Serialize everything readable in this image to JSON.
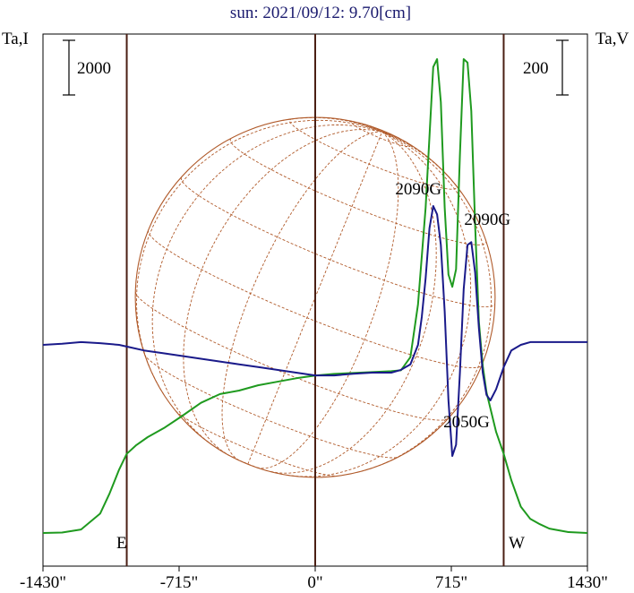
{
  "chart_data": {
    "type": "line",
    "title": "sun: 2021/09/12: 9.70[cm]",
    "left_axis_label": "Ta,I",
    "right_axis_label": "Ta,V",
    "left_scale_bar_label": "2000",
    "right_scale_bar_label": "200",
    "x_tick_labels": [
      "-1430\"",
      "-715\"",
      "0\"",
      "715\"",
      "1430\""
    ],
    "x_ticks": [
      -1430,
      -715,
      0,
      715,
      1430
    ],
    "xlim": [
      -1430,
      1430
    ],
    "limb_markers": {
      "east": -990,
      "center": 0,
      "west": 990,
      "east_label": "E",
      "west_label": "W"
    },
    "solar_disk": {
      "center_x": 0,
      "radius_arcsec": 945,
      "grid_color": "#b05a2a"
    },
    "annotations": [
      {
        "text": "2090G",
        "x": 590,
        "series": "V"
      },
      {
        "text": "2090G",
        "x": 820,
        "series": "V"
      },
      {
        "text": "2050G",
        "x": 720,
        "series": "V"
      }
    ],
    "series": [
      {
        "color": "#1f9a1f",
        "x": [
          -1430,
          -1330,
          -1230,
          -1130,
          -1080,
          -1030,
          -990,
          -940,
          -880,
          -790,
          -700,
          -600,
          -500,
          -400,
          -300,
          -200,
          -100,
          0,
          100,
          200,
          300,
          400,
          450,
          500,
          540,
          580,
          620,
          640,
          660,
          680,
          700,
          720,
          740,
          760,
          780,
          800,
          820,
          840,
          860,
          880,
          900,
          950,
          990,
          1030,
          1080,
          1130,
          1180,
          1230,
          1330,
          1430
        ],
        "values": [
          0,
          5,
          40,
          220,
          450,
          720,
          900,
          1000,
          1090,
          1200,
          1330,
          1480,
          1580,
          1620,
          1680,
          1720,
          1760,
          1790,
          1810,
          1820,
          1830,
          1840,
          1850,
          2000,
          2600,
          3700,
          5300,
          5390,
          4900,
          3700,
          2940,
          2800,
          3000,
          4300,
          5390,
          5350,
          4800,
          3500,
          2400,
          1900,
          1600,
          1150,
          900,
          600,
          300,
          160,
          100,
          50,
          10,
          0
        ]
      },
      {
        "color": "#1a1a8a",
        "x": [
          -1430,
          -1330,
          -1230,
          -1130,
          -1030,
          -990,
          -900,
          -800,
          -700,
          -600,
          -500,
          -400,
          -300,
          -200,
          -100,
          0,
          100,
          200,
          300,
          400,
          450,
          500,
          540,
          560,
          580,
          600,
          620,
          640,
          660,
          680,
          700,
          720,
          740,
          760,
          780,
          800,
          820,
          840,
          860,
          880,
          900,
          920,
          950,
          990,
          1030,
          1080,
          1130,
          1230,
          1330,
          1430
        ],
        "values": [
          0,
          2,
          5,
          3,
          0,
          -3,
          -10,
          -15,
          -20,
          -25,
          -30,
          -35,
          -40,
          -45,
          -50,
          -55,
          -55,
          -52,
          -50,
          -50,
          -45,
          -35,
          0,
          50,
          120,
          210,
          250,
          235,
          180,
          60,
          -100,
          -200,
          -180,
          -50,
          100,
          180,
          185,
          130,
          30,
          -50,
          -90,
          -100,
          -80,
          -40,
          -10,
          0,
          5,
          5,
          5,
          5
        ]
      }
    ]
  }
}
